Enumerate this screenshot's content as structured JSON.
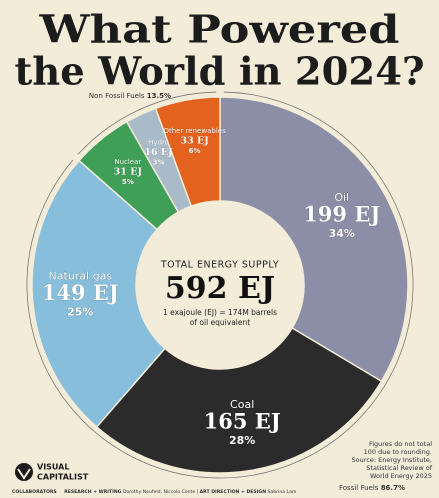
{
  "chart_data": {
    "type": "donut",
    "title_lines": [
      "What Powered",
      "the World in 2024?"
    ],
    "categories": [
      "Oil",
      "Coal",
      "Natural gas",
      "Nuclear",
      "Hydro",
      "Other renewables"
    ],
    "values": [
      199,
      165,
      149,
      31,
      16,
      33
    ],
    "value_labels": [
      "199 EJ",
      "165 EJ",
      "149 EJ",
      "31 EJ",
      "16 EJ",
      "33 EJ"
    ],
    "shares": [
      34,
      28,
      25,
      5,
      3,
      6
    ],
    "share_labels": [
      "34%",
      "28%",
      "25%",
      "5%",
      "3%",
      "6%"
    ],
    "colors": [
      "#8b8ea6",
      "#2b2b2b",
      "#86bedc",
      "#3f9f57",
      "#a9bac9",
      "#e3621e"
    ],
    "center": {
      "heading": "TOTAL ENERGY SUPPLY",
      "total": 592,
      "total_label": "592 EJ",
      "note_lines": [
        "1 exajoule (EJ) = 174M barrels",
        "of oil equivalent"
      ]
    },
    "groups": [
      {
        "name": "Fossil Fuels",
        "value": 86.7,
        "label": "86.7%"
      },
      {
        "name": "Non Fossil Fuels",
        "value": 13.5,
        "label": "13.5%"
      }
    ],
    "source_note": [
      "Figures do not total",
      "100 due to rounding.",
      "Source: Energy Institute,",
      "Statistical Review of",
      "World Energy 2025"
    ],
    "brand": [
      "VISUAL",
      "CAPITALIST"
    ],
    "credits": [
      "COLLABORATORS",
      "RESEARCH + WRITING",
      "Dorothy Neufeld, Niccolo Conte",
      "ART DIRECTION + DESIGN",
      "Sabrina Lam"
    ]
  }
}
